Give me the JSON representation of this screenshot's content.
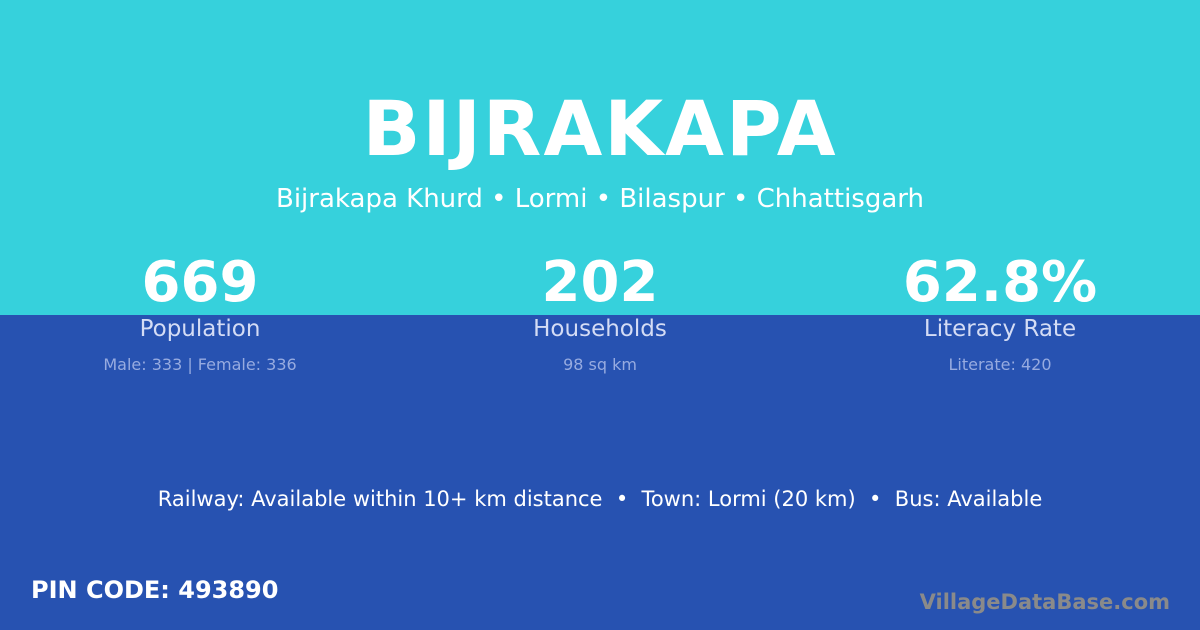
{
  "colors": {
    "top": "#36d1dc",
    "bottom": "#2752b1"
  },
  "title": "BIJRAKAPA",
  "subtitle": "Bijrakapa Khurd • Lormi • Bilaspur • Chhattisgarh",
  "stats": [
    {
      "value": "669",
      "label": "Population",
      "detail": "Male: 333 | Female: 336"
    },
    {
      "value": "202",
      "label": "Households",
      "detail": "98 sq km"
    },
    {
      "value": "62.8%",
      "label": "Literacy Rate",
      "detail": "Literate: 420"
    }
  ],
  "info": "Railway: Available within 10+ km distance  •  Town: Lormi (20 km)  •  Bus: Available",
  "pin": "PIN CODE: 493890",
  "brand": "VillageDataBase.com"
}
